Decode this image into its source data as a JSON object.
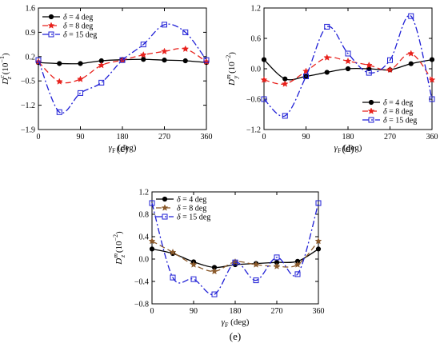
{
  "figure": {
    "background": "#ffffff"
  },
  "chart_data": [
    {
      "type": "line",
      "panel_label": "(c)",
      "xlabel_main": "γ",
      "xlabel_sub": "F",
      "xlabel_unit": " (deg)",
      "ylabel_main": "D",
      "ylabel_sub": "z",
      "ylabel_sup": "c",
      "ylabel_unit": " (10",
      "ylabel_exp": "−1",
      "ylabel_close": ")",
      "xlim": [
        0,
        360
      ],
      "ylim": [
        -1.9,
        1.6
      ],
      "xticks": [
        0,
        90,
        180,
        270,
        360
      ],
      "xtick_labels": [
        "0",
        "90",
        "180",
        "270",
        "360"
      ],
      "yticks": [
        -1.9,
        -1.2,
        -0.5,
        0.2,
        0.9,
        1.6
      ],
      "ytick_labels": [
        "−1.9",
        "−1.2",
        "−0.5",
        "0.2",
        "0.9",
        "1.6"
      ],
      "legend_position": "top-left",
      "grid": false,
      "series": [
        {
          "name": "δ = 4 deg",
          "greek": "δ",
          "rest": " = 4 deg",
          "color": "#000000",
          "dash": "",
          "marker": "circle",
          "x": [
            0,
            45,
            90,
            135,
            180,
            225,
            270,
            315,
            360
          ],
          "y": [
            0.03,
            0.0,
            0.0,
            0.08,
            0.11,
            0.12,
            0.1,
            0.08,
            0.03
          ]
        },
        {
          "name": "δ = 8 deg",
          "greek": "δ",
          "rest": " = 8 deg",
          "color": "#e8211c",
          "dash": "7,4",
          "marker": "star",
          "x": [
            0,
            45,
            90,
            135,
            180,
            225,
            270,
            315,
            360
          ],
          "y": [
            0.05,
            -0.52,
            -0.45,
            -0.05,
            0.1,
            0.25,
            0.35,
            0.42,
            0.05
          ]
        },
        {
          "name": "δ = 15 deg",
          "greek": "δ",
          "rest": " = 15 deg",
          "color": "#1f1fd6",
          "dash": "8,3,2,3",
          "marker": "square",
          "x": [
            0,
            45,
            90,
            135,
            180,
            225,
            270,
            315,
            360
          ],
          "y": [
            0.1,
            -1.4,
            -0.85,
            -0.55,
            0.1,
            0.55,
            1.12,
            0.9,
            0.1
          ]
        }
      ]
    },
    {
      "type": "line",
      "panel_label": "(d)",
      "xlabel_main": "γ",
      "xlabel_sub": "F",
      "xlabel_unit": " (deg)",
      "ylabel_main": "D",
      "ylabel_sub": "y",
      "ylabel_sup": "m",
      "ylabel_unit": " (10",
      "ylabel_exp": "−2",
      "ylabel_close": ")",
      "xlim": [
        0,
        360
      ],
      "ylim": [
        -1.2,
        1.2
      ],
      "xticks": [
        0,
        90,
        180,
        270,
        360
      ],
      "xtick_labels": [
        "0",
        "90",
        "180",
        "270",
        "360"
      ],
      "yticks": [
        -1.2,
        -0.6,
        0.0,
        0.6,
        1.2
      ],
      "ytick_labels": [
        "−1.2",
        "−0.6",
        "0.0",
        "0.6",
        "1.2"
      ],
      "legend_position": "bottom-right",
      "grid": false,
      "series": [
        {
          "name": "δ = 4 deg",
          "greek": "δ",
          "rest": " = 4 deg",
          "color": "#000000",
          "dash": "",
          "marker": "circle",
          "x": [
            0,
            45,
            90,
            135,
            180,
            225,
            270,
            315,
            360
          ],
          "y": [
            0.18,
            -0.2,
            -0.15,
            -0.07,
            0.0,
            0.0,
            -0.02,
            0.1,
            0.18
          ]
        },
        {
          "name": "δ = 8 deg",
          "greek": "δ",
          "rest": " = 8 deg",
          "color": "#e8211c",
          "dash": "7,4",
          "marker": "star",
          "x": [
            0,
            45,
            90,
            135,
            180,
            225,
            270,
            315,
            360
          ],
          "y": [
            -0.22,
            -0.3,
            -0.05,
            0.22,
            0.15,
            0.07,
            -0.02,
            0.3,
            -0.22
          ]
        },
        {
          "name": "δ = 15 deg",
          "greek": "δ",
          "rest": " = 15 deg",
          "color": "#1f1fd6",
          "dash": "8,3,2,3",
          "marker": "square",
          "x": [
            0,
            45,
            90,
            135,
            180,
            225,
            270,
            315,
            360
          ],
          "y": [
            -0.6,
            -0.93,
            -0.15,
            0.83,
            0.3,
            -0.08,
            0.17,
            1.04,
            -0.6
          ]
        }
      ]
    },
    {
      "type": "line",
      "panel_label": "(e)",
      "xlabel_main": "γ",
      "xlabel_sub": "F",
      "xlabel_unit": " (deg)",
      "ylabel_main": "D",
      "ylabel_sub": "z",
      "ylabel_sup": "m",
      "ylabel_unit": " (10",
      "ylabel_exp": "−2",
      "ylabel_close": ")",
      "xlim": [
        0,
        360
      ],
      "ylim": [
        -0.8,
        1.2
      ],
      "xticks": [
        0,
        90,
        180,
        270,
        360
      ],
      "xtick_labels": [
        "0",
        "90",
        "180",
        "270",
        "360"
      ],
      "yticks": [
        -0.8,
        -0.4,
        0.0,
        0.4,
        0.8,
        1.2
      ],
      "ytick_labels": [
        "−0.8",
        "−0.4",
        "0.0",
        "0.4",
        "0.8",
        "1.2"
      ],
      "legend_position": "top-left",
      "grid": false,
      "series": [
        {
          "name": "δ = 4 deg",
          "greek": "δ",
          "rest": " = 4 deg",
          "color": "#000000",
          "dash": "",
          "marker": "circle",
          "x": [
            0,
            45,
            90,
            135,
            180,
            225,
            270,
            315,
            360
          ],
          "y": [
            0.18,
            0.1,
            -0.05,
            -0.15,
            -0.1,
            -0.08,
            -0.06,
            -0.04,
            0.18
          ]
        },
        {
          "name": "δ = 8 deg",
          "greek": "δ",
          "rest": " = 8 deg",
          "color": "#8b5a2b",
          "dash": "7,4",
          "marker": "star",
          "x": [
            0,
            45,
            90,
            135,
            180,
            225,
            270,
            315,
            360
          ],
          "y": [
            0.32,
            0.12,
            -0.1,
            -0.22,
            -0.05,
            -0.1,
            -0.13,
            -0.1,
            0.32
          ]
        },
        {
          "name": "δ = 15 deg",
          "greek": "δ",
          "rest": " = 15 deg",
          "color": "#1f1fd6",
          "dash": "8,3,2,3",
          "marker": "square",
          "x": [
            0,
            45,
            90,
            135,
            180,
            225,
            270,
            315,
            360
          ],
          "y": [
            1.0,
            -0.33,
            -0.36,
            -0.63,
            -0.06,
            -0.38,
            0.03,
            -0.27,
            1.0
          ]
        }
      ]
    }
  ]
}
